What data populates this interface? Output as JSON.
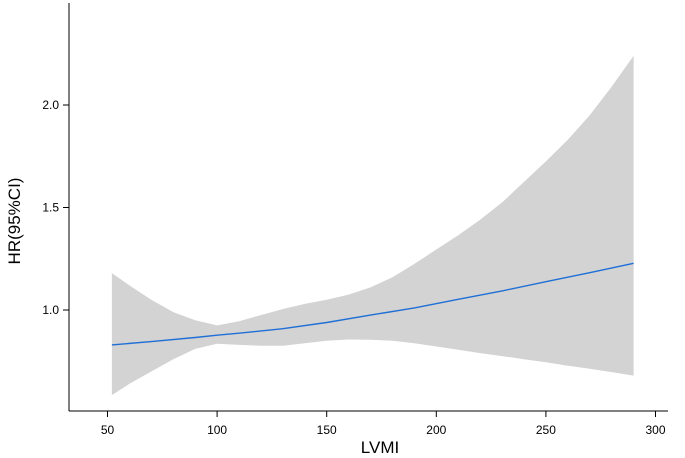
{
  "chart_data": {
    "type": "line",
    "title": "",
    "xlabel": "LVMI",
    "ylabel": "HR(95%CI)",
    "xlim": [
      35,
      305
    ],
    "ylim": [
      0.52,
      2.5
    ],
    "x_ticks": [
      50,
      100,
      150,
      200,
      250,
      300
    ],
    "y_ticks": [
      1.0,
      1.5,
      2.0
    ],
    "grid": false,
    "legend": "none",
    "colors": {
      "line": "#1f6fd6",
      "band": "#d3d3d3"
    },
    "series": [
      {
        "x": [
          52,
          70,
          90,
          100,
          110,
          130,
          150,
          170,
          190,
          210,
          230,
          250,
          270,
          290
        ],
        "values": [
          0.83,
          0.846,
          0.866,
          0.877,
          0.887,
          0.909,
          0.939,
          0.975,
          1.01,
          1.052,
          1.093,
          1.138,
          1.182,
          1.228
        ]
      }
    ],
    "confidence_band": {
      "x": [
        52,
        60,
        70,
        80,
        90,
        100,
        110,
        120,
        130,
        140,
        150,
        160,
        170,
        180,
        190,
        200,
        210,
        220,
        230,
        240,
        250,
        260,
        270,
        280,
        290
      ],
      "upper": [
        1.18,
        1.12,
        1.05,
        0.99,
        0.95,
        0.925,
        0.945,
        0.975,
        1.005,
        1.03,
        1.05,
        1.075,
        1.11,
        1.16,
        1.225,
        1.295,
        1.365,
        1.44,
        1.525,
        1.625,
        1.725,
        1.83,
        1.95,
        2.09,
        2.24
      ],
      "lower": [
        0.585,
        0.64,
        0.7,
        0.76,
        0.81,
        0.835,
        0.83,
        0.826,
        0.826,
        0.838,
        0.85,
        0.856,
        0.855,
        0.85,
        0.838,
        0.822,
        0.806,
        0.79,
        0.775,
        0.76,
        0.745,
        0.728,
        0.713,
        0.697,
        0.68
      ]
    }
  }
}
